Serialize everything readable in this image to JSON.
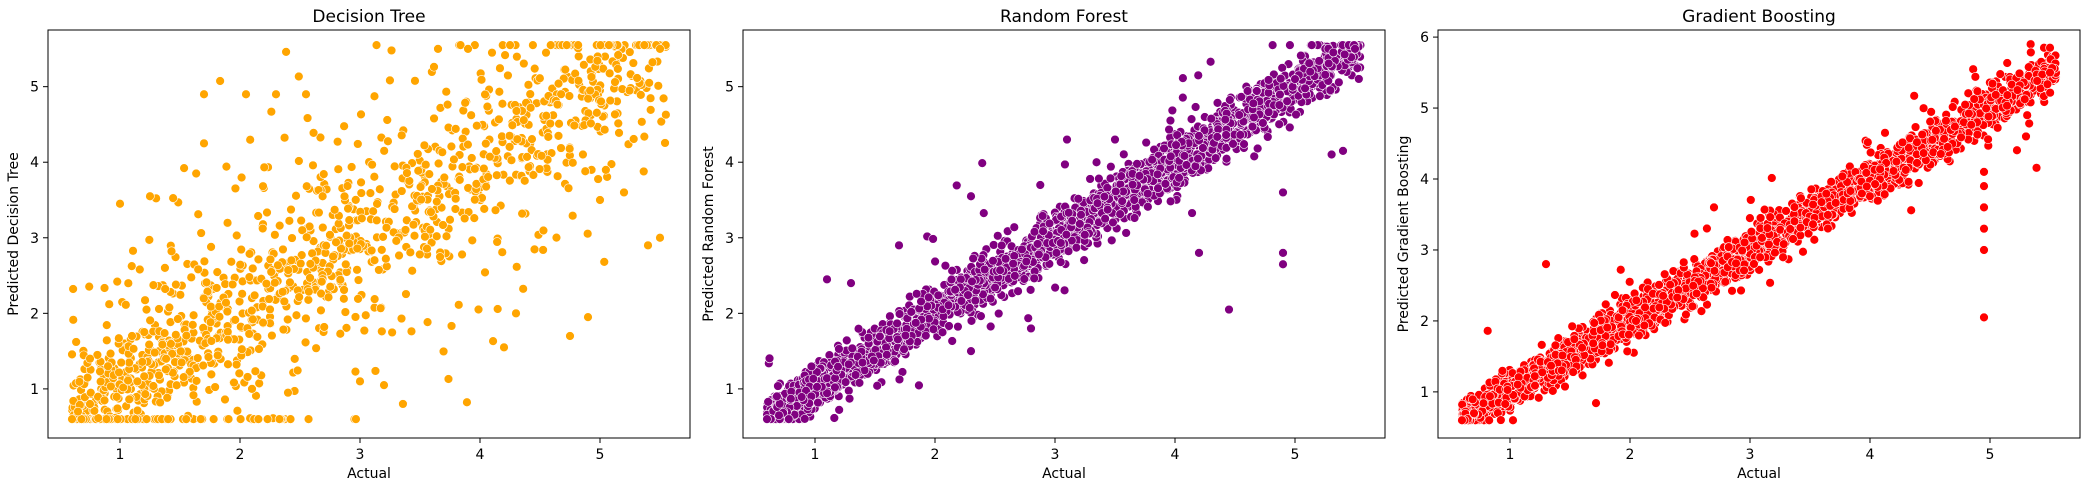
{
  "chart_data": [
    {
      "type": "scatter",
      "title": "Decision Tree",
      "xlabel": "Actual",
      "ylabel": "Predicted Decision Tree",
      "color": "#FFA500",
      "xlim": [
        0.4,
        5.75
      ],
      "ylim": [
        0.35,
        5.75
      ],
      "xticks": [
        1,
        2,
        3,
        4,
        5
      ],
      "yticks": [
        1,
        2,
        3,
        4,
        5
      ],
      "grid": false,
      "pattern": {
        "n": 1300,
        "x_range": [
          0.6,
          5.55
        ],
        "y_range": [
          0.6,
          5.55
        ],
        "noise_sd": 0.45,
        "outlier_fraction": 0.35,
        "outlier_sd": 1.2,
        "clip_max": 5.55
      },
      "points": [
        [
          0.6,
          0.6
        ],
        [
          0.65,
          0.7
        ],
        [
          0.75,
          0.8
        ],
        [
          0.75,
          1.4
        ],
        [
          0.9,
          1.3
        ],
        [
          1.0,
          3.45
        ],
        [
          1.1,
          1.7
        ],
        [
          1.25,
          3.55
        ],
        [
          1.7,
          4.9
        ],
        [
          1.7,
          4.25
        ],
        [
          2.05,
          4.9
        ],
        [
          2.3,
          4.9
        ],
        [
          2.55,
          4.9
        ],
        [
          2.1,
          1.0
        ],
        [
          2.4,
          0.95
        ],
        [
          3.0,
          1.1
        ],
        [
          3.2,
          1.05
        ],
        [
          3.65,
          5.5
        ],
        [
          3.9,
          5.5
        ],
        [
          4.1,
          5.45
        ],
        [
          4.2,
          1.55
        ],
        [
          4.3,
          2.0
        ],
        [
          4.55,
          5.45
        ],
        [
          4.75,
          1.7
        ],
        [
          4.9,
          1.95
        ],
        [
          5.0,
          3.5
        ],
        [
          5.2,
          3.6
        ],
        [
          5.4,
          2.9
        ],
        [
          5.5,
          3.0
        ],
        [
          5.5,
          5.5
        ]
      ]
    },
    {
      "type": "scatter",
      "title": "Random Forest",
      "xlabel": "Actual",
      "ylabel": "Predicted Random Forest",
      "color": "#800080",
      "xlim": [
        0.4,
        5.75
      ],
      "ylim": [
        0.35,
        5.75
      ],
      "xticks": [
        1,
        2,
        3,
        4,
        5
      ],
      "yticks": [
        1,
        2,
        3,
        4,
        5
      ],
      "grid": false,
      "pattern": {
        "n": 2600,
        "x_range": [
          0.6,
          5.55
        ],
        "y_range": [
          0.6,
          5.55
        ],
        "noise_sd": 0.18,
        "outlier_fraction": 0.02,
        "outlier_sd": 0.6,
        "clip_max": 5.55
      },
      "points": [
        [
          0.6,
          0.6
        ],
        [
          0.7,
          0.65
        ],
        [
          1.1,
          2.45
        ],
        [
          1.3,
          2.4
        ],
        [
          1.7,
          2.9
        ],
        [
          2.3,
          3.55
        ],
        [
          2.3,
          1.5
        ],
        [
          2.8,
          1.8
        ],
        [
          3.1,
          4.3
        ],
        [
          3.5,
          4.3
        ],
        [
          4.2,
          2.8
        ],
        [
          4.45,
          2.05
        ],
        [
          4.9,
          2.65
        ],
        [
          4.9,
          2.8
        ],
        [
          4.9,
          3.6
        ],
        [
          5.0,
          5.1
        ],
        [
          5.4,
          4.15
        ],
        [
          5.5,
          5.5
        ]
      ]
    },
    {
      "type": "scatter",
      "title": "Gradient Boosting",
      "xlabel": "Actual",
      "ylabel": "Predicted Gradient Boosting",
      "color": "#FF0000",
      "xlim": [
        0.4,
        5.75
      ],
      "ylim": [
        0.35,
        6.1
      ],
      "xticks": [
        1,
        2,
        3,
        4,
        5
      ],
      "yticks": [
        1,
        2,
        3,
        4,
        5,
        6
      ],
      "grid": false,
      "pattern": {
        "n": 2600,
        "x_range": [
          0.6,
          5.55
        ],
        "y_range": [
          0.6,
          5.9
        ],
        "noise_sd": 0.16,
        "outlier_fraction": 0.015,
        "outlier_sd": 0.5,
        "clip_max": 5.9
      },
      "points": [
        [
          0.6,
          0.6
        ],
        [
          0.7,
          0.7
        ],
        [
          1.3,
          2.8
        ],
        [
          2.05,
          2.0
        ],
        [
          2.7,
          3.6
        ],
        [
          3.3,
          3.55
        ],
        [
          4.95,
          2.05
        ],
        [
          4.95,
          3.0
        ],
        [
          4.95,
          3.3
        ],
        [
          4.95,
          3.6
        ],
        [
          4.95,
          3.9
        ],
        [
          4.95,
          4.1
        ],
        [
          5.3,
          4.6
        ],
        [
          5.45,
          5.85
        ],
        [
          5.5,
          5.85
        ],
        [
          5.5,
          5.5
        ]
      ]
    }
  ]
}
